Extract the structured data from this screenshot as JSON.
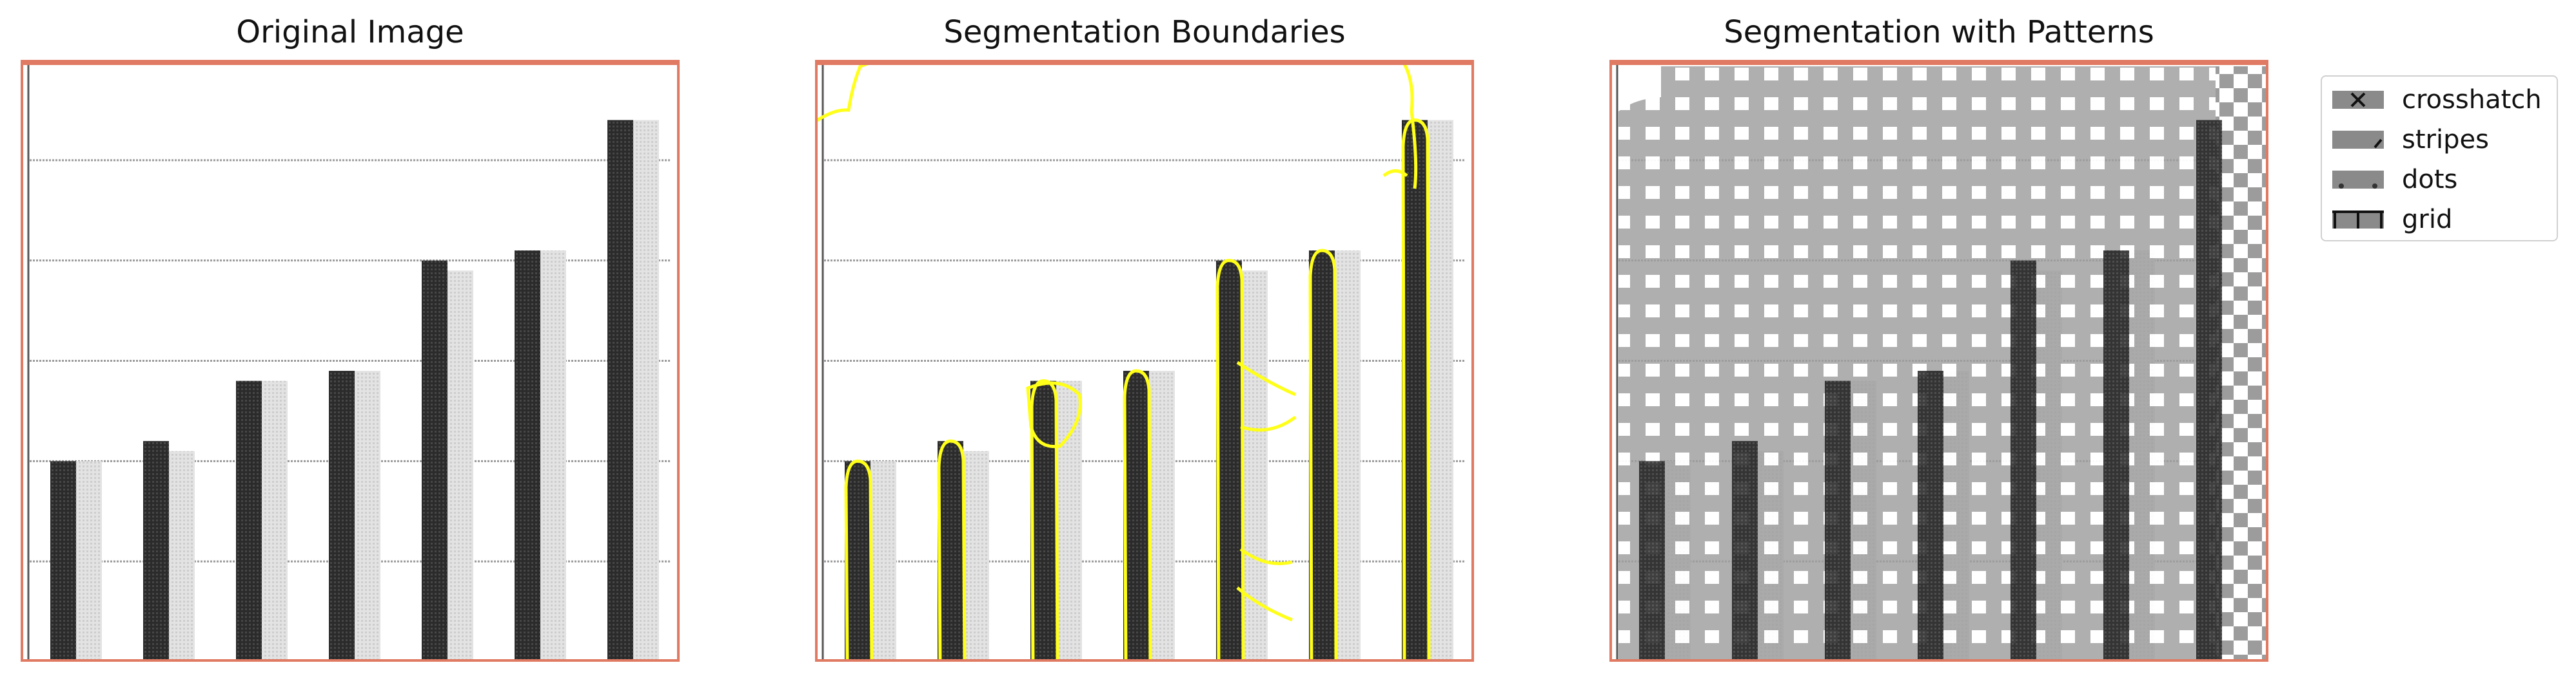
{
  "panels": [
    {
      "title": "Original Image"
    },
    {
      "title": "Segmentation Boundaries"
    },
    {
      "title": "Segmentation with Patterns"
    }
  ],
  "colors": {
    "frame": "#e07a62",
    "bar_dark": "#2b2b2b",
    "bar_light": "#cdcdcd",
    "gridline": "#9a9a9a",
    "boundary": "#ffff1a",
    "overlay": "#9c9c9c",
    "legend_swatch": "#8a8a8a"
  },
  "chart_data": {
    "type": "bar",
    "ylim": [
      0,
      6
    ],
    "gridlines": [
      1,
      2,
      3,
      4,
      5
    ],
    "series": [
      {
        "values": [
          2.0,
          2.2,
          2.8,
          2.9,
          4.0,
          4.1,
          5.4
        ]
      },
      {
        "values": [
          2.0,
          2.1,
          2.8,
          2.9,
          3.9,
          4.1,
          5.4
        ]
      }
    ]
  },
  "legend": {
    "items": [
      {
        "label": "crosshatch",
        "icon": "crosshatch-icon"
      },
      {
        "label": "stripes",
        "icon": "stripes-icon"
      },
      {
        "label": "dots",
        "icon": "dots-icon"
      },
      {
        "label": "grid",
        "icon": "grid-icon"
      }
    ]
  }
}
